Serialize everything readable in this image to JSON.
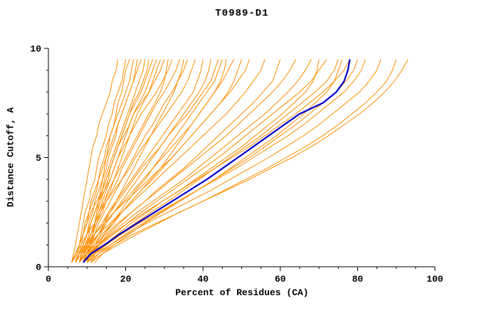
{
  "chart_data": {
    "type": "line",
    "title": "T0989-D1",
    "xlabel": "Percent of Residues (CA)",
    "ylabel": "Distance Cutoff, A",
    "xlim": [
      0,
      100
    ],
    "ylim": [
      0,
      10
    ],
    "xticks": [
      0,
      20,
      40,
      60,
      80,
      100
    ],
    "yticks": [
      0,
      5,
      10
    ],
    "x_minor_step": 5,
    "y_minor_step": 1,
    "grid": false,
    "legend": "none",
    "background_color": "#ffffff",
    "axis_color": "#000000",
    "series_color": "#ff8c00",
    "cutoffs": [
      0.2,
      0.6,
      1,
      1.5,
      2,
      2.5,
      3,
      3.5,
      4,
      4.5,
      5,
      5.5,
      6,
      6.5,
      7,
      7.5,
      8,
      8.5,
      9,
      9.5
    ],
    "orange_series": [
      [
        6,
        6.5,
        7,
        7.5,
        8,
        8.5,
        9,
        9.5,
        10,
        10.5,
        11,
        11.5,
        12.5,
        13,
        14,
        15,
        16,
        16.5,
        17.5,
        18
      ],
      [
        7,
        7.5,
        8,
        8.5,
        9,
        9.5,
        10.5,
        11,
        12,
        12.5,
        13,
        14,
        15,
        15.5,
        16.5,
        17,
        18,
        19,
        19.5,
        20
      ],
      [
        7,
        8,
        8.5,
        9,
        10,
        10.5,
        11,
        12,
        13,
        13.5,
        14.5,
        15,
        16,
        17,
        18,
        19,
        20,
        21,
        21.5,
        22
      ],
      [
        8,
        8.5,
        9,
        10,
        10.5,
        11.5,
        12,
        13,
        14,
        15,
        15.5,
        16.5,
        17.5,
        18,
        19,
        20,
        21,
        22,
        22.5,
        23
      ],
      [
        6,
        7,
        8,
        9,
        9.5,
        10.5,
        11.5,
        12.5,
        13,
        14,
        15,
        16,
        17,
        18,
        19,
        20,
        21,
        22,
        23,
        24
      ],
      [
        8,
        9,
        9.5,
        10.5,
        11,
        12,
        13,
        14,
        14.5,
        15.5,
        16.5,
        17.5,
        18.5,
        19.5,
        20.5,
        21.5,
        22.5,
        23.5,
        24.5,
        25
      ],
      [
        9,
        9.5,
        10,
        11,
        12,
        12.5,
        13.5,
        14.5,
        15.5,
        16,
        17,
        18,
        19,
        20,
        21,
        22,
        23.5,
        24.5,
        25.5,
        26
      ],
      [
        7,
        8,
        9,
        10,
        11,
        12,
        13,
        14,
        15,
        16,
        17,
        18,
        19,
        20,
        21,
        22.5,
        24,
        25,
        26,
        27
      ],
      [
        8,
        9,
        10,
        11,
        12,
        13,
        14,
        15,
        16,
        17,
        18,
        19,
        20,
        21,
        22,
        23.5,
        25,
        26,
        27,
        28
      ],
      [
        9,
        10,
        10.5,
        11.5,
        12.5,
        13.5,
        14.5,
        15.5,
        17,
        18,
        19,
        20,
        21,
        22,
        23,
        24.5,
        26,
        27,
        28,
        29
      ],
      [
        6,
        7,
        8,
        9,
        10,
        11,
        12.5,
        14,
        15,
        16,
        17,
        18,
        19.5,
        21,
        22,
        24,
        26,
        27.5,
        29,
        30
      ],
      [
        10,
        10.5,
        11,
        11.5,
        12,
        12.5,
        13,
        13.5,
        14,
        14.5,
        15,
        15.5,
        16,
        17,
        17.5,
        18,
        19,
        19.5,
        20,
        21
      ],
      [
        7,
        8,
        9,
        10,
        11,
        12,
        13,
        14.5,
        16,
        17,
        18,
        19.5,
        21,
        22.5,
        24,
        26,
        28,
        29.5,
        31,
        32
      ],
      [
        8,
        9,
        10,
        11,
        12.5,
        14,
        15,
        16.5,
        18,
        19,
        20.5,
        22,
        23.5,
        25,
        26.5,
        28,
        30,
        31.5,
        33,
        34
      ],
      [
        9,
        10,
        11,
        12,
        13,
        14.5,
        16,
        17.5,
        19,
        20.5,
        22,
        23.5,
        25,
        27,
        28.5,
        30,
        32,
        33.5,
        35,
        36
      ],
      [
        6,
        7,
        8.5,
        10,
        12,
        13.5,
        15,
        17,
        19,
        21,
        22.5,
        24.5,
        26.5,
        28.5,
        30.5,
        32.5,
        34.5,
        36,
        37,
        38
      ],
      [
        8,
        9,
        10.5,
        12,
        14,
        15.5,
        17.5,
        19.5,
        21.5,
        23.5,
        25.5,
        27.5,
        29.5,
        31.5,
        33.5,
        35.5,
        37.5,
        38.5,
        39.5,
        40
      ],
      [
        10,
        11,
        12,
        13.5,
        15,
        17,
        19,
        21,
        23,
        25,
        27,
        29,
        31,
        33,
        35,
        37,
        39,
        40.5,
        41.5,
        42
      ],
      [
        7,
        8,
        10,
        12,
        14,
        16,
        18,
        20,
        22,
        24,
        26.5,
        29,
        31,
        33.5,
        36,
        38,
        40,
        42,
        43,
        44
      ],
      [
        9,
        10,
        11.5,
        13,
        14.5,
        16,
        17.5,
        19,
        20.5,
        22,
        23.5,
        25,
        26.5,
        28,
        29.5,
        31,
        32.5,
        33.5,
        34.5,
        35
      ],
      [
        8,
        8.5,
        9.5,
        11,
        12,
        13,
        14.5,
        16,
        17,
        18.5,
        20,
        21.5,
        23,
        24.5,
        26,
        27.5,
        29,
        30,
        30.5,
        31
      ],
      [
        11,
        12,
        13,
        14.5,
        16.5,
        18.5,
        20.5,
        22.5,
        25,
        27,
        29,
        31,
        33,
        35,
        37,
        39,
        41,
        43,
        44,
        45
      ],
      [
        8,
        9,
        11,
        13,
        15,
        17,
        19.5,
        22,
        24.5,
        27,
        29.5,
        32,
        34.5,
        37,
        39,
        41,
        43,
        45,
        46.5,
        48
      ],
      [
        9,
        10,
        12,
        14,
        16.5,
        19,
        21.5,
        24,
        27,
        29.5,
        32,
        34.5,
        37,
        39.5,
        42,
        44.5,
        47,
        49,
        51,
        52
      ],
      [
        7,
        8.5,
        10.5,
        13,
        16,
        19,
        22,
        25,
        28,
        31,
        34,
        37,
        40,
        43,
        46,
        48.5,
        51,
        53,
        55,
        56
      ],
      [
        10,
        11,
        13,
        15.5,
        18.5,
        21.5,
        25,
        28,
        31.5,
        35,
        38,
        41,
        44,
        47,
        50,
        53,
        55.5,
        58,
        59,
        60
      ],
      [
        8,
        9.5,
        12,
        15,
        18,
        21.5,
        25,
        28.5,
        32,
        35.5,
        39,
        42.5,
        46,
        49,
        52,
        55,
        58,
        60.5,
        62.5,
        64
      ],
      [
        9,
        10.5,
        13,
        16,
        19.5,
        23,
        27,
        31,
        35,
        38.5,
        42,
        45.5,
        49,
        52.5,
        56,
        59,
        62,
        64.5,
        66.5,
        68
      ],
      [
        6,
        7.5,
        9.5,
        12,
        14.5,
        17,
        20,
        23,
        26,
        29,
        32,
        34.5,
        37,
        39.5,
        42,
        44.5,
        46.5,
        48,
        49,
        50
      ],
      [
        10,
        11,
        12.5,
        14.5,
        17,
        19,
        21.5,
        24,
        26.5,
        29,
        31,
        33,
        35,
        37,
        39,
        41,
        43,
        44.5,
        45.5,
        46
      ],
      [
        9,
        11,
        13.5,
        17,
        20.5,
        24,
        28,
        32,
        36,
        40,
        44,
        47.5,
        51,
        54.5,
        58,
        61.5,
        65,
        68,
        70,
        72
      ],
      [
        10,
        12,
        15,
        18.5,
        22.5,
        26.5,
        31,
        35,
        39,
        43,
        47,
        51,
        55,
        58.5,
        62,
        65.5,
        69,
        72,
        74,
        75
      ],
      [
        8,
        10,
        13,
        16.5,
        20.5,
        25,
        29.5,
        34,
        38.5,
        43,
        47.5,
        52,
        56,
        60,
        64,
        67.5,
        71,
        74,
        76.5,
        78
      ],
      [
        11,
        13,
        16,
        20,
        24.5,
        29,
        34,
        38.5,
        43,
        47.5,
        52,
        56,
        60,
        64,
        67.5,
        71,
        74.5,
        77,
        79,
        80
      ],
      [
        9,
        11.5,
        15,
        19,
        23.5,
        28.5,
        33.5,
        38.5,
        43.5,
        48.5,
        53,
        57.5,
        62,
        66,
        69.5,
        73,
        76.5,
        79,
        81,
        82
      ],
      [
        12,
        14,
        17,
        21,
        25,
        29.5,
        34,
        38.5,
        43,
        47,
        51,
        55,
        59,
        62.5,
        66,
        69,
        72,
        74,
        75,
        76
      ],
      [
        10,
        12,
        14.5,
        18,
        21.5,
        25.5,
        29.5,
        34,
        38,
        42,
        46,
        50,
        53.5,
        57,
        60.5,
        63.5,
        66.5,
        68.5,
        69.5,
        70
      ],
      [
        9,
        12,
        16,
        20.5,
        25.5,
        31,
        36.5,
        42,
        47,
        52,
        57,
        61.5,
        66,
        70,
        73.5,
        77,
        80.5,
        83,
        85,
        86
      ],
      [
        11,
        14,
        18,
        23,
        28.5,
        34,
        40,
        45.5,
        51,
        56.5,
        61.5,
        66.5,
        71,
        75,
        78.5,
        82,
        85,
        87.5,
        89,
        90
      ],
      [
        10,
        13,
        17,
        22,
        28,
        34,
        40,
        46,
        52,
        57.5,
        63,
        68,
        72.5,
        76.5,
        80.5,
        84,
        87,
        89.5,
        91.5,
        93
      ]
    ],
    "highlight_series": {
      "color": "#0000cd",
      "x": [
        9,
        11,
        14.5,
        18.5,
        23,
        27.5,
        32,
        36.5,
        41,
        45,
        49,
        53,
        57,
        61,
        65,
        71,
        74.5,
        76.5,
        77.5,
        78
      ]
    }
  }
}
